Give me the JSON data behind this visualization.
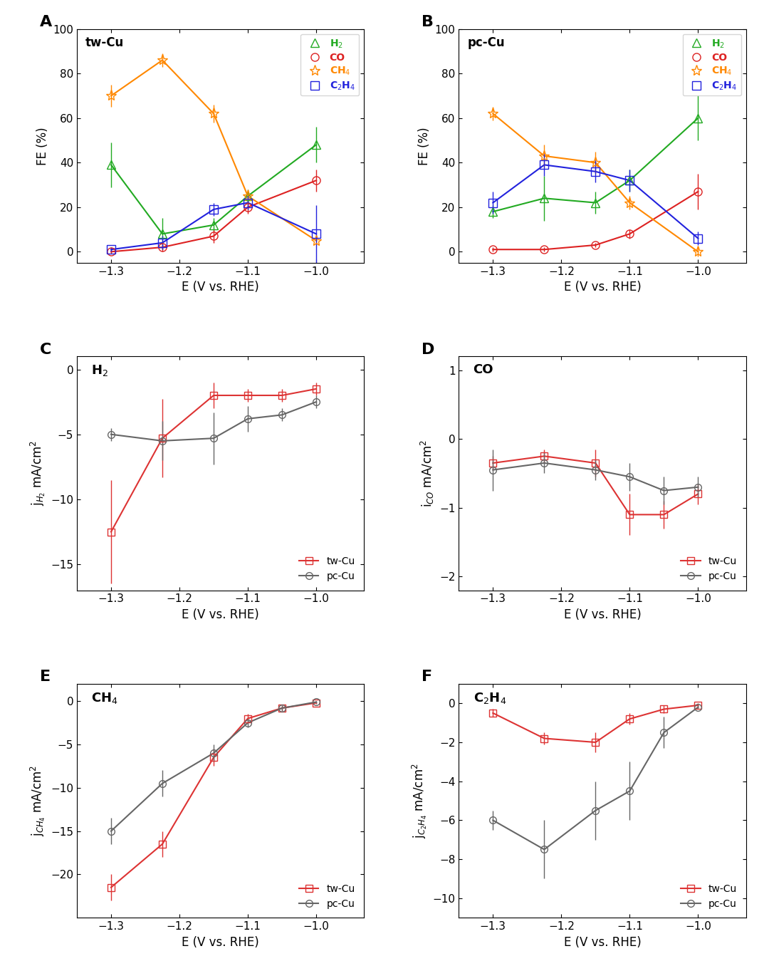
{
  "panel_A": {
    "title": "tw-Cu",
    "x": [
      -1.3,
      -1.225,
      -1.15,
      -1.1,
      -1.0
    ],
    "H2_y": [
      39,
      8,
      12,
      25,
      48
    ],
    "H2_err": [
      10,
      7,
      3,
      3,
      8
    ],
    "CO_y": [
      0,
      2,
      7,
      20,
      32
    ],
    "CO_err": [
      1,
      2,
      3,
      3,
      5
    ],
    "CH4_y": [
      70,
      86,
      62,
      25,
      5
    ],
    "CH4_err": [
      5,
      3,
      4,
      3,
      2
    ],
    "C2H4_y": [
      1,
      4,
      19,
      22,
      8
    ],
    "C2H4_err": [
      1,
      3,
      3,
      3,
      13
    ]
  },
  "panel_B": {
    "title": "pc-Cu",
    "x": [
      -1.3,
      -1.225,
      -1.15,
      -1.1,
      -1.0
    ],
    "H2_y": [
      18,
      24,
      22,
      32,
      60
    ],
    "H2_err": [
      3,
      10,
      5,
      5,
      10
    ],
    "CO_y": [
      1,
      1,
      3,
      8,
      27
    ],
    "CO_err": [
      1,
      1,
      1,
      2,
      8
    ],
    "CH4_y": [
      62,
      43,
      40,
      22,
      0
    ],
    "CH4_err": [
      3,
      5,
      5,
      3,
      2
    ],
    "C2H4_y": [
      22,
      39,
      36,
      32,
      6
    ],
    "C2H4_err": [
      5,
      5,
      5,
      5,
      3
    ]
  },
  "panel_C": {
    "title": "H$_2$",
    "ylabel": "j$_{H_2}$ mA/cm$^2$",
    "x": [
      -1.3,
      -1.225,
      -1.15,
      -1.1,
      -1.05,
      -1.0
    ],
    "tw_y": [
      -12.5,
      -5.3,
      -2.0,
      -2.0,
      -2.0,
      -1.5
    ],
    "tw_err": [
      4,
      3,
      1,
      0.5,
      0.5,
      0.5
    ],
    "pc_y": [
      -5.0,
      -5.5,
      -5.3,
      -3.8,
      -3.5,
      -2.5
    ],
    "pc_err": [
      0.5,
      1.5,
      2,
      1,
      0.5,
      0.5
    ],
    "ylim": [
      -17,
      1
    ],
    "yticks": [
      0,
      -5,
      -10,
      -15
    ]
  },
  "panel_D": {
    "title": "CO",
    "ylabel": "i$_{CO}$ mA/cm$^2$",
    "x": [
      -1.3,
      -1.225,
      -1.15,
      -1.1,
      -1.05,
      -1.0
    ],
    "tw_y": [
      -0.35,
      -0.25,
      -0.35,
      -1.1,
      -1.1,
      -0.8
    ],
    "tw_err": [
      0.1,
      0.1,
      0.2,
      0.3,
      0.2,
      0.15
    ],
    "pc_y": [
      -0.45,
      -0.35,
      -0.45,
      -0.55,
      -0.75,
      -0.7
    ],
    "pc_err": [
      0.3,
      0.15,
      0.15,
      0.2,
      0.2,
      0.15
    ],
    "ylim": [
      -2.2,
      1.2
    ],
    "yticks": [
      1,
      0,
      -1,
      -2
    ]
  },
  "panel_E": {
    "title": "CH$_4$",
    "ylabel": "j$_{CH_4}$ mA/cm$^2$",
    "x": [
      -1.3,
      -1.225,
      -1.15,
      -1.1,
      -1.05,
      -1.0
    ],
    "tw_y": [
      -21.5,
      -16.5,
      -6.5,
      -2.0,
      -0.8,
      -0.2
    ],
    "tw_err": [
      1.5,
      1.5,
      1,
      0.5,
      0.3,
      0.1
    ],
    "pc_y": [
      -15.0,
      -9.5,
      -6.0,
      -2.5,
      -0.8,
      -0.1
    ],
    "pc_err": [
      1.5,
      1.5,
      1,
      0.5,
      0.3,
      0.1
    ],
    "ylim": [
      -25,
      2
    ],
    "yticks": [
      0,
      -5,
      -10,
      -15,
      -20
    ]
  },
  "panel_F": {
    "title": "C$_2$H$_4$",
    "ylabel": "j$_{C_2H_4}$ mA/cm$^2$",
    "x": [
      -1.3,
      -1.225,
      -1.15,
      -1.1,
      -1.05,
      -1.0
    ],
    "tw_y": [
      -0.5,
      -1.8,
      -2.0,
      -0.8,
      -0.3,
      -0.1
    ],
    "tw_err": [
      0.2,
      0.3,
      0.5,
      0.3,
      0.2,
      0.1
    ],
    "pc_y": [
      -6.0,
      -7.5,
      -5.5,
      -4.5,
      -1.5,
      -0.2
    ],
    "pc_err": [
      0.5,
      1.5,
      1.5,
      1.5,
      0.8,
      0.1
    ],
    "ylim": [
      -11,
      1
    ],
    "yticks": [
      0,
      -2,
      -4,
      -6,
      -8,
      -10
    ]
  },
  "colors": {
    "H2": "#22aa22",
    "CO": "#dd2222",
    "CH4": "#ff8800",
    "C2H4": "#2222dd",
    "tw_Cu": "#dd3333",
    "pc_Cu": "#666666"
  },
  "xlabel": "E (V vs. RHE)",
  "FE_ylabel": "FE (%)",
  "FE_ylim": [
    -5,
    100
  ],
  "FE_yticks": [
    0,
    20,
    40,
    60,
    80,
    100
  ],
  "x_ticks": [
    -1.3,
    -1.2,
    -1.1,
    -1.0
  ],
  "x_lim": [
    -1.35,
    -0.93
  ]
}
